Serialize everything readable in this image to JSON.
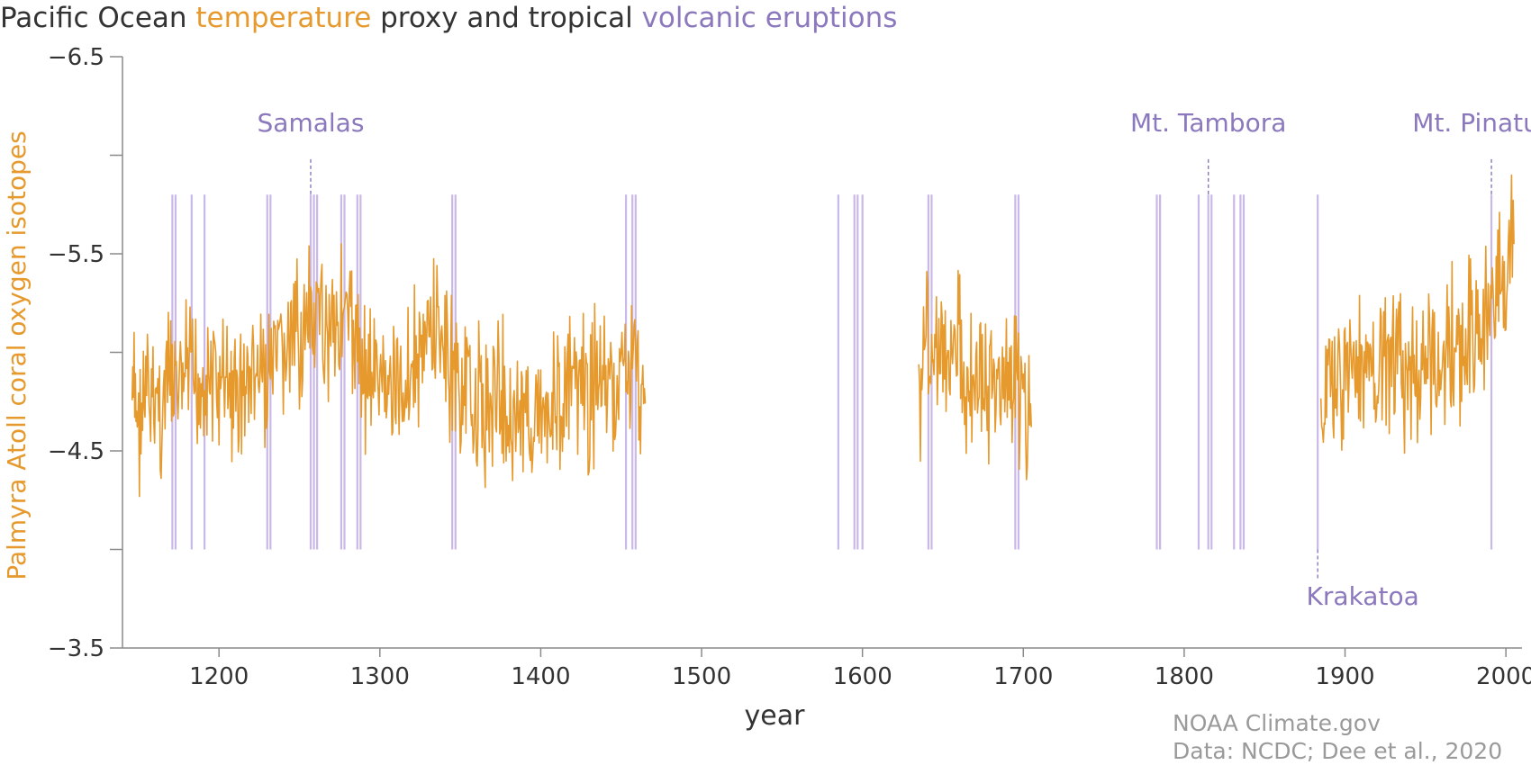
{
  "chart_data": {
    "type": "line",
    "title_segments": [
      {
        "text": "Pacific Ocean ",
        "color": "#333333"
      },
      {
        "text": "temperature",
        "color": "#e69a2e"
      },
      {
        "text": " proxy and tropical ",
        "color": "#333333"
      },
      {
        "text": "volcanic eruptions",
        "color": "#8b78bd"
      }
    ],
    "xlabel": "year",
    "ylabel": "Palmyra Atoll coral oxygen isotopes",
    "xlim": [
      1140,
      2010
    ],
    "ylim": [
      -3.5,
      -6.5
    ],
    "y_inverted": true,
    "x_ticks": [
      1200,
      1300,
      1400,
      1500,
      1600,
      1700,
      1800,
      1900,
      2000
    ],
    "y_ticks": [
      -6.5,
      -5.5,
      -4.5,
      -3.5
    ],
    "y_minor_ticks": [
      -6.0,
      -5.0,
      -4.0
    ],
    "grid": false,
    "colors": {
      "proxy": "#e69a2e",
      "eruption": "#c9b8e8",
      "eruption_label": "#8b78bd",
      "axis": "#8a8a8a"
    },
    "series": [
      {
        "color": "#e69a2e",
        "segments": [
          {
            "x": [
              1146,
              1150,
              1155,
              1160,
              1165,
              1170,
              1175,
              1180,
              1185,
              1190,
              1195,
              1200,
              1205,
              1210,
              1215,
              1220,
              1225,
              1230,
              1235,
              1240,
              1245,
              1250,
              1255,
              1260,
              1265,
              1270,
              1275,
              1280,
              1285,
              1290,
              1295,
              1300,
              1305,
              1310,
              1315,
              1320,
              1325,
              1330,
              1335,
              1340,
              1345,
              1350,
              1355,
              1360,
              1365,
              1370,
              1375,
              1380,
              1385,
              1390,
              1395,
              1400,
              1405,
              1410,
              1415,
              1420,
              1425,
              1430,
              1435,
              1440,
              1445,
              1450,
              1455,
              1460,
              1465
            ],
            "y": [
              -4.75,
              -4.68,
              -4.7,
              -4.78,
              -4.72,
              -4.85,
              -4.8,
              -4.88,
              -4.82,
              -4.9,
              -4.86,
              -4.8,
              -4.84,
              -4.78,
              -4.82,
              -4.9,
              -4.86,
              -4.95,
              -4.92,
              -4.98,
              -5.02,
              -5.1,
              -5.05,
              -5.15,
              -5.12,
              -5.2,
              -5.18,
              -5.15,
              -5.08,
              -4.95,
              -4.88,
              -4.82,
              -4.85,
              -4.8,
              -4.88,
              -4.92,
              -5.0,
              -5.05,
              -5.1,
              -5.0,
              -4.92,
              -4.8,
              -4.78,
              -4.74,
              -4.7,
              -4.76,
              -4.8,
              -4.72,
              -4.68,
              -4.62,
              -4.7,
              -4.75,
              -4.78,
              -4.74,
              -4.8,
              -4.76,
              -4.82,
              -4.78,
              -4.84,
              -4.86,
              -4.8,
              -4.88,
              -4.92,
              -4.9,
              -4.74
            ]
          },
          {
            "x": [
              1635,
              1640,
              1645,
              1650,
              1655,
              1660,
              1665,
              1670,
              1675,
              1680,
              1685,
              1690,
              1695,
              1700,
              1705
            ],
            "y": [
              -4.85,
              -5.1,
              -4.95,
              -4.9,
              -5.0,
              -5.05,
              -4.88,
              -4.92,
              -4.85,
              -4.8,
              -4.86,
              -4.9,
              -4.85,
              -4.7,
              -4.62
            ]
          },
          {
            "x": [
              1885,
              1890,
              1895,
              1900,
              1905,
              1910,
              1915,
              1920,
              1925,
              1930,
              1935,
              1940,
              1945,
              1950,
              1955,
              1960,
              1965,
              1970,
              1975,
              1980,
              1985,
              1990,
              1995,
              2000,
              2005
            ],
            "y": [
              -4.7,
              -4.82,
              -4.88,
              -4.92,
              -4.95,
              -4.9,
              -4.86,
              -4.92,
              -4.88,
              -4.94,
              -4.9,
              -4.86,
              -4.92,
              -4.96,
              -5.02,
              -4.98,
              -5.04,
              -5.0,
              -5.06,
              -5.08,
              -5.12,
              -5.18,
              -5.25,
              -5.4,
              -5.55
            ]
          }
        ]
      }
    ],
    "eruption_years": [
      1171,
      1173,
      1183,
      1191,
      1230,
      1232,
      1257,
      1259,
      1261,
      1276,
      1278,
      1286,
      1288,
      1345,
      1347,
      1453,
      1457,
      1459,
      1585,
      1595,
      1597,
      1600,
      1641,
      1643,
      1695,
      1697,
      1783,
      1785,
      1809,
      1815,
      1817,
      1831,
      1835,
      1837,
      1883,
      1991
    ],
    "annotations": [
      {
        "label": "Samalas",
        "x": 1257,
        "position": "above"
      },
      {
        "label": "Mt. Tambora",
        "x": 1815,
        "position": "above"
      },
      {
        "label": "Mt. Pinatubo",
        "x": 1991,
        "position": "above"
      },
      {
        "label": "Krakatoa",
        "x": 1883,
        "position": "below"
      }
    ]
  },
  "credit": {
    "line1": "NOAA Climate.gov",
    "line2": "Data: NCDC; Dee et al., 2020"
  }
}
